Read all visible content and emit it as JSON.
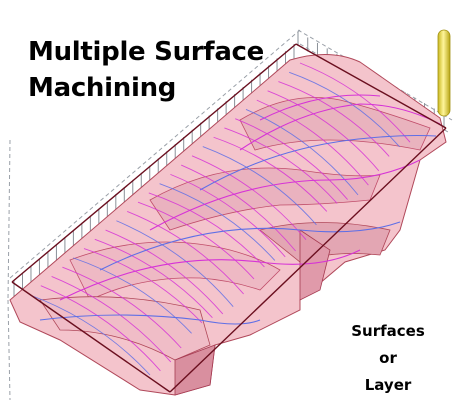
{
  "title": {
    "line1": "Multiple Surface",
    "line2": "Machining"
  },
  "caption": {
    "line1": "Surfaces",
    "line2": "or",
    "line3": "Layer"
  },
  "colors": {
    "surface_fill": "#f4c4cc",
    "surface_fill_dark": "#e3a6b3",
    "toolpath_magenta": "#d633d6",
    "toolpath_blue": "#5f6fe6",
    "boundary_maroon": "#6b0f1f",
    "guide_lines": "#9aa0a8",
    "cutter_yellow": "#f0e04a"
  },
  "icons": {
    "cutter": "cutting-tool-icon"
  }
}
